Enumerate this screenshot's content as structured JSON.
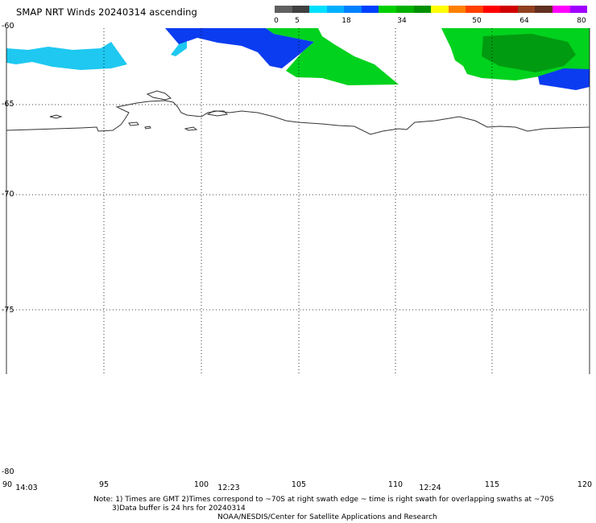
{
  "title": "SMAP NRT Winds 20240314 ascending",
  "color_scale": {
    "tick_labels": [
      "0",
      "5",
      "18",
      "34",
      "50",
      "64",
      "80"
    ],
    "segments": [
      "#606060",
      "#404040",
      "#00e0ff",
      "#00b0ff",
      "#0080ff",
      "#0040ff",
      "#00d000",
      "#00b000",
      "#009000",
      "#ffff00",
      "#ff8000",
      "#ff4000",
      "#ff0000",
      "#d00000",
      "#904020",
      "#603020",
      "#ff00ff",
      "#a000ff"
    ]
  },
  "map": {
    "lat_labels": [
      "-60",
      "-65",
      "-70",
      "-75",
      "-80"
    ],
    "lon_labels": [
      "90",
      "95",
      "100",
      "105",
      "110",
      "115",
      "120"
    ],
    "time_labels": [
      "14:03",
      "12:23",
      "12:24"
    ],
    "wind_colors": {
      "cyan": "#1ec8f0",
      "blue": "#0b3cf0",
      "green": "#00d21e",
      "dark_green": "#009b10"
    }
  },
  "notes": {
    "line1": "Note: 1) Times are GMT 2)Times correspond to ~70S at right swath edge ~ time is right swath for overlapping swaths at ~70S",
    "line2": "3)Data buffer is 24 hrs for 20240314",
    "line3": "NOAA/NESDIS/Center for Satellite Applications and Research"
  }
}
